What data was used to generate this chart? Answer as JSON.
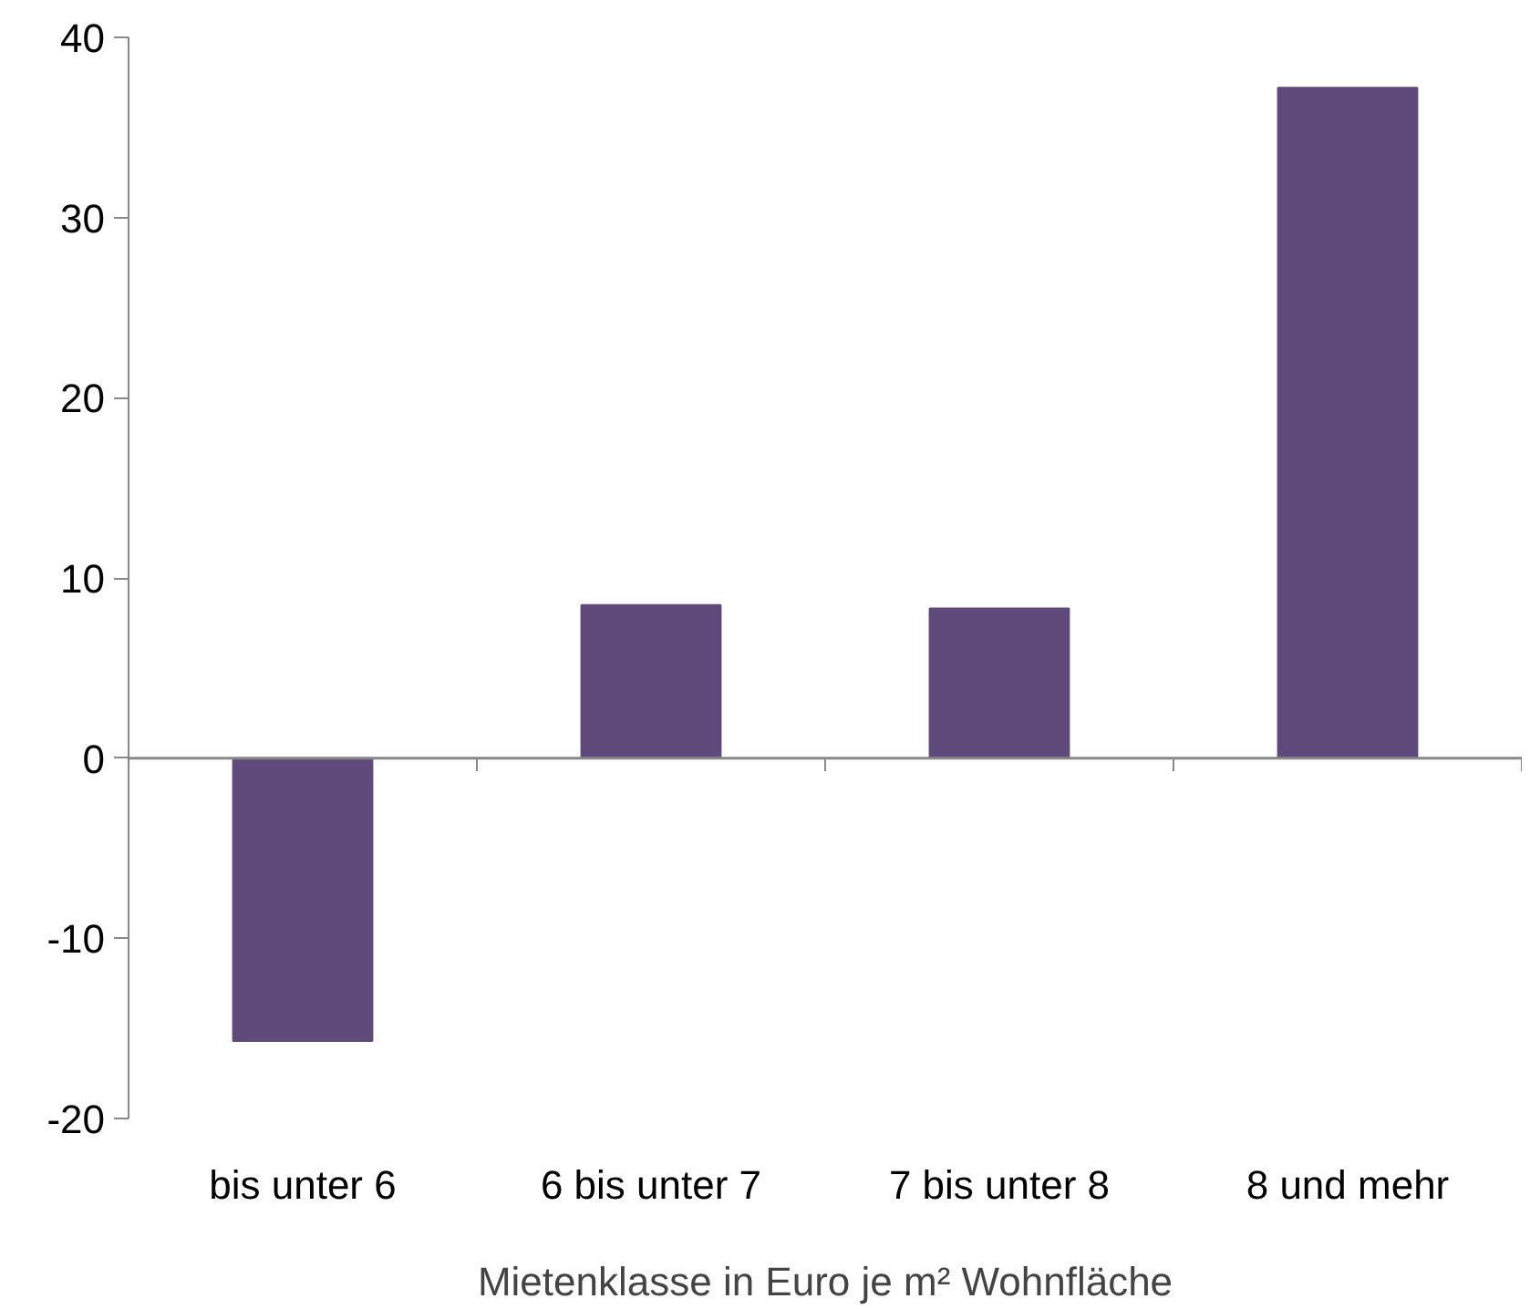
{
  "chart_data": {
    "type": "bar",
    "xlabel": "Mietenklasse in Euro je m² Wohnfläche",
    "categories": [
      "bis unter 6",
      "6 bis unter 7",
      "7 bis unter 8",
      "8 und mehr"
    ],
    "values": [
      -15.7,
      8.5,
      8.3,
      37.2
    ],
    "color": "#604a7b",
    "ylim": [
      -20,
      40
    ],
    "yticks": [
      -20,
      -10,
      0,
      10,
      20,
      30,
      40
    ]
  }
}
